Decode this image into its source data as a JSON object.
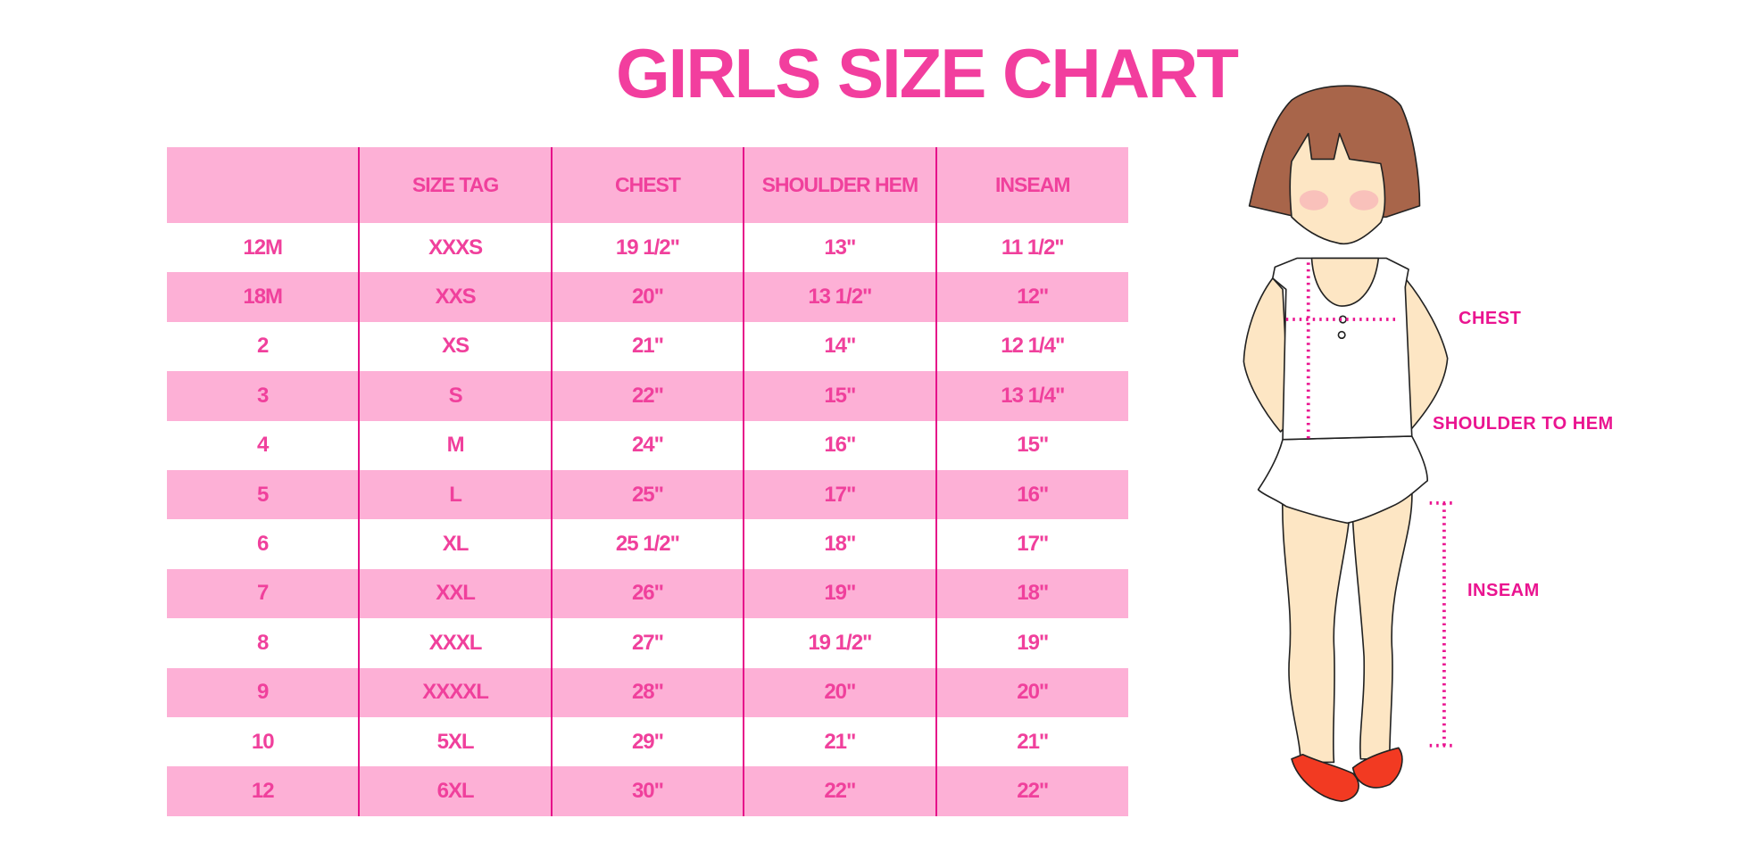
{
  "title": "GIRLS SIZE CHART",
  "table": {
    "headers": [
      "",
      "SIZE TAG",
      "CHEST",
      "SHOULDER HEM",
      "INSEAM"
    ],
    "rows": [
      [
        "12M",
        "XXXS",
        "19 1/2\"",
        "13\"",
        "11 1/2\""
      ],
      [
        "18M",
        "XXS",
        "20\"",
        "13 1/2\"",
        "12\""
      ],
      [
        "2",
        "XS",
        "21\"",
        "14\"",
        "12 1/4\""
      ],
      [
        "3",
        "S",
        "22\"",
        "15\"",
        "13 1/4\""
      ],
      [
        "4",
        "M",
        "24\"",
        "16\"",
        "15\""
      ],
      [
        "5",
        "L",
        "25\"",
        "17\"",
        "16\""
      ],
      [
        "6",
        "XL",
        "25 1/2\"",
        "18\"",
        "17\""
      ],
      [
        "7",
        "XXL",
        "26\"",
        "19\"",
        "18\""
      ],
      [
        "8",
        "XXXL",
        "27\"",
        "19 1/2\"",
        "19\""
      ],
      [
        "9",
        "XXXXL",
        "28\"",
        "20\"",
        "20\""
      ],
      [
        "10",
        "5XL",
        "29\"",
        "21\"",
        "21\""
      ],
      [
        "12",
        "6XL",
        "30\"",
        "22\"",
        "22\""
      ]
    ]
  },
  "figure": {
    "labels": {
      "chest": "CHEST",
      "shoulder_to_hem": "SHOULDER TO HEM",
      "inseam": "INSEAM"
    }
  },
  "colors": {
    "accent": "#F23E9E",
    "row_pink": "#FDB0D6",
    "divider": "#E6118A",
    "hair": "#A8654A",
    "skin": "#FDE6C4",
    "shoes": "#F23A22"
  }
}
